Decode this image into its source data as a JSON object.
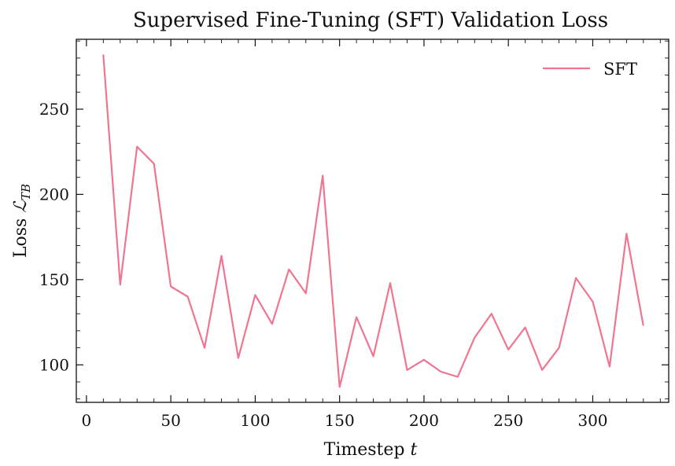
{
  "chart_data": {
    "type": "line",
    "title": "Supervised Fine-Tuning (SFT) Validation Loss",
    "xlabel": "Timestep t",
    "ylabel": "Loss ℒ_TB",
    "xlabel_parts": {
      "text": "Timestep ",
      "var": "t"
    },
    "ylabel_parts": {
      "text": "Loss ",
      "var": "ℒ",
      "sub": "TB"
    },
    "xlim": [
      -6,
      345
    ],
    "ylim": [
      78,
      291
    ],
    "xticks": [
      0,
      50,
      100,
      150,
      200,
      250,
      300
    ],
    "yticks": [
      100,
      150,
      200,
      250
    ],
    "legend": {
      "placement": "top-right"
    },
    "series": [
      {
        "name": "SFT",
        "color": "#f07590",
        "x": [
          10,
          20,
          30,
          40,
          50,
          60,
          70,
          80,
          90,
          100,
          110,
          120,
          130,
          140,
          150,
          160,
          170,
          180,
          190,
          200,
          210,
          220,
          230,
          240,
          250,
          260,
          270,
          280,
          290,
          300,
          310,
          320,
          330
        ],
        "y": [
          282,
          147,
          228,
          218,
          146,
          140,
          110,
          164,
          104,
          141,
          124,
          156,
          142,
          211,
          87,
          128,
          105,
          148,
          97,
          103,
          96,
          93,
          116,
          130,
          109,
          122,
          97,
          110,
          151,
          137,
          99,
          177,
          123
        ]
      }
    ]
  }
}
